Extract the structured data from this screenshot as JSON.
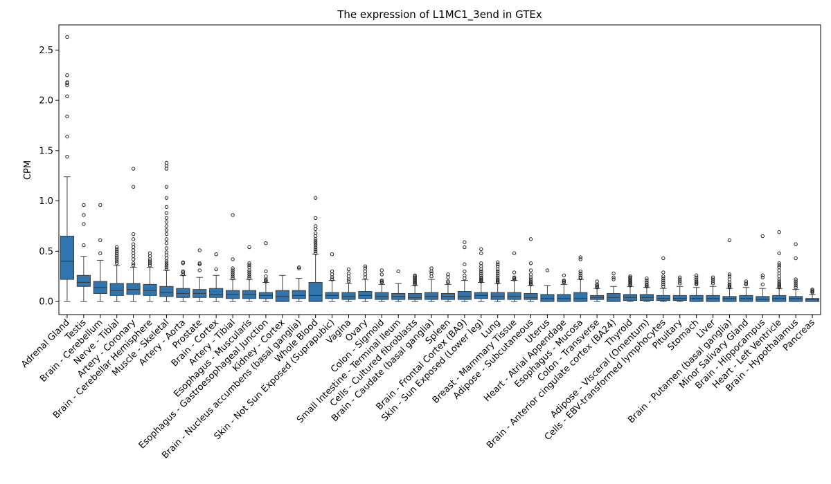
{
  "chart_data": {
    "type": "box",
    "title": "The expression of L1MC1_3end in GTEx",
    "xlabel": "",
    "ylabel": "CPM",
    "ylim": [
      -0.13,
      2.75
    ],
    "yticks": [
      0.0,
      0.5,
      1.0,
      1.5,
      2.0,
      2.5
    ],
    "ytick_labels": [
      "0.0",
      "0.5",
      "1.0",
      "1.5",
      "2.0",
      "2.5"
    ],
    "grid": false,
    "legend": "none",
    "box_color": "#2f75b0",
    "categories": [
      "Adrenal Gland",
      "Testis",
      "Brain - Cerebellum",
      "Nerve - Tibial",
      "Artery - Coronary",
      "Brain - Cerebellar Hemisphere",
      "Muscle - Skeletal",
      "Artery - Aorta",
      "Prostate",
      "Brain - Cortex",
      "Artery - Tibial",
      "Esophagus - Muscularis",
      "Esophagus - Gastroesophageal Junction",
      "Kidney - Cortex",
      "Brain - Nucleus accumbens (basal ganglia)",
      "Whole Blood",
      "Skin - Not Sun Exposed (Suprapubic)",
      "Vagina",
      "Ovary",
      "Colon - Sigmoid",
      "Small Intestine - Terminal Ileum",
      "Cells - Cultured fibroblasts",
      "Brain - Caudate (basal ganglia)",
      "Spleen",
      "Brain - Frontal Cortex (BA9)",
      "Skin - Sun Exposed (Lower leg)",
      "Lung",
      "Breast - Mammary Tissue",
      "Adipose - Subcutaneous",
      "Uterus",
      "Heart - Atrial Appendage",
      "Esophagus - Mucosa",
      "Colon - Transverse",
      "Brain - Anterior cingulate cortex (BA24)",
      "Thyroid",
      "Adipose - Visceral (Omentum)",
      "Cells - EBV-transformed lymphocytes",
      "Pituitary",
      "Stomach",
      "Liver",
      "Brain - Putamen (basal ganglia)",
      "Minor Salivary Gland",
      "Brain - Hippocampus",
      "Heart - Left Ventricle",
      "Brain - Hypothalamus",
      "Pancreas"
    ],
    "boxes": [
      {
        "whislo": 0.0,
        "q1": 0.22,
        "med": 0.4,
        "q3": 0.65,
        "whishi": 1.24,
        "fliers": [
          1.44,
          1.64,
          1.84,
          2.04,
          2.15,
          2.17,
          2.18,
          2.25,
          2.63
        ]
      },
      {
        "whislo": 0.0,
        "q1": 0.15,
        "med": 0.19,
        "q3": 0.26,
        "whishi": 0.45,
        "fliers": [
          0.56,
          0.77,
          0.86,
          0.96
        ]
      },
      {
        "whislo": 0.0,
        "q1": 0.08,
        "med": 0.14,
        "q3": 0.2,
        "whishi": 0.41,
        "fliers": [
          0.48,
          0.61,
          0.96
        ]
      },
      {
        "whislo": 0.0,
        "q1": 0.06,
        "med": 0.11,
        "q3": 0.18,
        "whishi": 0.36,
        "fliers": [
          0.38,
          0.4,
          0.42,
          0.44,
          0.46,
          0.48,
          0.5,
          0.52,
          0.54
        ]
      },
      {
        "whislo": 0.0,
        "q1": 0.07,
        "med": 0.12,
        "q3": 0.18,
        "whishi": 0.34,
        "fliers": [
          0.36,
          0.38,
          0.42,
          0.45,
          0.48,
          0.51,
          0.54,
          0.57,
          0.62,
          0.67,
          1.14,
          1.32
        ]
      },
      {
        "whislo": 0.0,
        "q1": 0.06,
        "med": 0.11,
        "q3": 0.17,
        "whishi": 0.34,
        "fliers": [
          0.36,
          0.38,
          0.4,
          0.42,
          0.45,
          0.48
        ]
      },
      {
        "whislo": 0.0,
        "q1": 0.05,
        "med": 0.09,
        "q3": 0.15,
        "whishi": 0.31,
        "fliers": [
          0.32,
          0.34,
          0.36,
          0.38,
          0.4,
          0.43,
          0.46,
          0.49,
          0.53,
          0.58,
          0.62,
          0.67,
          0.71,
          0.75,
          0.79,
          0.83,
          0.88,
          0.94,
          1.03,
          1.14,
          1.32,
          1.35,
          1.38
        ]
      },
      {
        "whislo": 0.0,
        "q1": 0.04,
        "med": 0.08,
        "q3": 0.13,
        "whishi": 0.26,
        "fliers": [
          0.27,
          0.29,
          0.3,
          0.38,
          0.39
        ]
      },
      {
        "whislo": 0.0,
        "q1": 0.04,
        "med": 0.08,
        "q3": 0.12,
        "whishi": 0.24,
        "fliers": [
          0.31,
          0.37,
          0.38,
          0.51
        ]
      },
      {
        "whislo": 0.0,
        "q1": 0.04,
        "med": 0.07,
        "q3": 0.13,
        "whishi": 0.26,
        "fliers": [
          0.32,
          0.47
        ]
      },
      {
        "whislo": 0.0,
        "q1": 0.03,
        "med": 0.07,
        "q3": 0.11,
        "whishi": 0.22,
        "fliers": [
          0.23,
          0.25,
          0.27,
          0.29,
          0.31,
          0.33,
          0.42,
          0.86
        ]
      },
      {
        "whislo": 0.0,
        "q1": 0.03,
        "med": 0.07,
        "q3": 0.11,
        "whishi": 0.22,
        "fliers": [
          0.23,
          0.25,
          0.27,
          0.29,
          0.31,
          0.34,
          0.36,
          0.38,
          0.54
        ]
      },
      {
        "whislo": 0.0,
        "q1": 0.03,
        "med": 0.06,
        "q3": 0.09,
        "whishi": 0.19,
        "fliers": [
          0.2,
          0.21,
          0.22,
          0.25,
          0.3,
          0.58
        ]
      },
      {
        "whislo": 0.0,
        "q1": 0.0,
        "med": 0.05,
        "q3": 0.11,
        "whishi": 0.26,
        "fliers": []
      },
      {
        "whislo": 0.0,
        "q1": 0.03,
        "med": 0.06,
        "q3": 0.11,
        "whishi": 0.23,
        "fliers": [
          0.33,
          0.34
        ]
      },
      {
        "whislo": 0.0,
        "q1": 0.0,
        "med": 0.06,
        "q3": 0.19,
        "whishi": 0.47,
        "fliers": [
          0.48,
          0.5,
          0.52,
          0.54,
          0.56,
          0.58,
          0.6,
          0.62,
          0.65,
          0.68,
          0.72,
          0.75,
          0.83,
          1.03
        ]
      },
      {
        "whislo": 0.0,
        "q1": 0.03,
        "med": 0.06,
        "q3": 0.09,
        "whishi": 0.21,
        "fliers": [
          0.22,
          0.24,
          0.27,
          0.3,
          0.47
        ]
      },
      {
        "whislo": 0.0,
        "q1": 0.02,
        "med": 0.05,
        "q3": 0.09,
        "whishi": 0.18,
        "fliers": [
          0.2,
          0.22,
          0.25,
          0.28,
          0.32
        ]
      },
      {
        "whislo": 0.0,
        "q1": 0.03,
        "med": 0.06,
        "q3": 0.1,
        "whishi": 0.22,
        "fliers": [
          0.24,
          0.27,
          0.3,
          0.33,
          0.35
        ]
      },
      {
        "whislo": 0.0,
        "q1": 0.02,
        "med": 0.05,
        "q3": 0.09,
        "whishi": 0.17,
        "fliers": [
          0.19,
          0.2,
          0.21,
          0.27,
          0.31
        ]
      },
      {
        "whislo": 0.0,
        "q1": 0.02,
        "med": 0.05,
        "q3": 0.08,
        "whishi": 0.18,
        "fliers": [
          0.3
        ]
      },
      {
        "whislo": 0.0,
        "q1": 0.02,
        "med": 0.04,
        "q3": 0.08,
        "whishi": 0.16,
        "fliers": [
          0.17,
          0.18,
          0.19,
          0.2,
          0.21,
          0.22,
          0.23,
          0.24,
          0.25,
          0.26
        ]
      },
      {
        "whislo": 0.0,
        "q1": 0.02,
        "med": 0.05,
        "q3": 0.09,
        "whishi": 0.22,
        "fliers": [
          0.25,
          0.28,
          0.3,
          0.33
        ]
      },
      {
        "whislo": 0.0,
        "q1": 0.02,
        "med": 0.05,
        "q3": 0.08,
        "whishi": 0.17,
        "fliers": [
          0.19,
          0.2,
          0.24,
          0.27
        ]
      },
      {
        "whislo": 0.0,
        "q1": 0.02,
        "med": 0.05,
        "q3": 0.1,
        "whishi": 0.21,
        "fliers": [
          0.23,
          0.26,
          0.3,
          0.37,
          0.54,
          0.59
        ]
      },
      {
        "whislo": 0.0,
        "q1": 0.03,
        "med": 0.06,
        "q3": 0.09,
        "whishi": 0.19,
        "fliers": [
          0.2,
          0.21,
          0.22,
          0.23,
          0.24,
          0.26,
          0.28,
          0.3,
          0.32,
          0.35,
          0.38,
          0.48,
          0.52
        ]
      },
      {
        "whislo": 0.0,
        "q1": 0.02,
        "med": 0.05,
        "q3": 0.09,
        "whishi": 0.18,
        "fliers": [
          0.19,
          0.2,
          0.21,
          0.22,
          0.24,
          0.26,
          0.28,
          0.3,
          0.32,
          0.35,
          0.37,
          0.39
        ]
      },
      {
        "whislo": 0.0,
        "q1": 0.02,
        "med": 0.05,
        "q3": 0.09,
        "whishi": 0.21,
        "fliers": [
          0.22,
          0.23,
          0.24,
          0.29,
          0.48
        ]
      },
      {
        "whislo": 0.0,
        "q1": 0.02,
        "med": 0.04,
        "q3": 0.08,
        "whishi": 0.16,
        "fliers": [
          0.17,
          0.18,
          0.19,
          0.2,
          0.22,
          0.24,
          0.27,
          0.31,
          0.38,
          0.62
        ]
      },
      {
        "whislo": 0.0,
        "q1": 0.0,
        "med": 0.03,
        "q3": 0.07,
        "whishi": 0.16,
        "fliers": [
          0.31
        ]
      },
      {
        "whislo": 0.0,
        "q1": 0.0,
        "med": 0.03,
        "q3": 0.07,
        "whishi": 0.17,
        "fliers": [
          0.19,
          0.2,
          0.21,
          0.26
        ]
      },
      {
        "whislo": 0.0,
        "q1": 0.0,
        "med": 0.03,
        "q3": 0.09,
        "whishi": 0.22,
        "fliers": [
          0.23,
          0.24,
          0.26,
          0.28,
          0.3,
          0.42,
          0.44
        ]
      },
      {
        "whislo": 0.0,
        "q1": 0.02,
        "med": 0.04,
        "q3": 0.06,
        "whishi": 0.13,
        "fliers": [
          0.14,
          0.15,
          0.16,
          0.17,
          0.2
        ]
      },
      {
        "whislo": 0.0,
        "q1": 0.0,
        "med": 0.04,
        "q3": 0.08,
        "whishi": 0.15,
        "fliers": [
          0.22,
          0.24,
          0.28
        ]
      },
      {
        "whislo": 0.0,
        "q1": 0.01,
        "med": 0.04,
        "q3": 0.07,
        "whishi": 0.15,
        "fliers": [
          0.16,
          0.17,
          0.18,
          0.19,
          0.2,
          0.21,
          0.22,
          0.23,
          0.24,
          0.25
        ]
      },
      {
        "whislo": 0.0,
        "q1": 0.01,
        "med": 0.04,
        "q3": 0.07,
        "whishi": 0.14,
        "fliers": [
          0.15,
          0.16,
          0.17,
          0.19,
          0.21,
          0.23
        ]
      },
      {
        "whislo": 0.0,
        "q1": 0.01,
        "med": 0.03,
        "q3": 0.06,
        "whishi": 0.13,
        "fliers": [
          0.15,
          0.17,
          0.19,
          0.21,
          0.23,
          0.25,
          0.29,
          0.43
        ]
      },
      {
        "whislo": 0.0,
        "q1": 0.01,
        "med": 0.03,
        "q3": 0.06,
        "whishi": 0.15,
        "fliers": [
          0.18,
          0.2,
          0.22,
          0.24
        ]
      },
      {
        "whislo": 0.0,
        "q1": 0.0,
        "med": 0.03,
        "q3": 0.06,
        "whishi": 0.14,
        "fliers": [
          0.17,
          0.18,
          0.19,
          0.2,
          0.22,
          0.24,
          0.26
        ]
      },
      {
        "whislo": 0.0,
        "q1": 0.0,
        "med": 0.03,
        "q3": 0.06,
        "whishi": 0.15,
        "fliers": [
          0.18,
          0.2,
          0.22,
          0.24
        ]
      },
      {
        "whislo": 0.0,
        "q1": 0.0,
        "med": 0.03,
        "q3": 0.05,
        "whishi": 0.13,
        "fliers": [
          0.14,
          0.15,
          0.16,
          0.17,
          0.19,
          0.22,
          0.25,
          0.27,
          0.61
        ]
      },
      {
        "whislo": 0.0,
        "q1": 0.0,
        "med": 0.03,
        "q3": 0.06,
        "whishi": 0.14,
        "fliers": [
          0.17,
          0.18,
          0.2
        ]
      },
      {
        "whislo": 0.0,
        "q1": 0.0,
        "med": 0.02,
        "q3": 0.05,
        "whishi": 0.13,
        "fliers": [
          0.17,
          0.24,
          0.26,
          0.65
        ]
      },
      {
        "whislo": 0.0,
        "q1": 0.0,
        "med": 0.03,
        "q3": 0.06,
        "whishi": 0.13,
        "fliers": [
          0.14,
          0.15,
          0.16,
          0.17,
          0.18,
          0.2,
          0.22,
          0.25,
          0.28,
          0.31,
          0.34,
          0.36,
          0.38,
          0.48,
          0.69
        ]
      },
      {
        "whislo": 0.0,
        "q1": 0.0,
        "med": 0.03,
        "q3": 0.05,
        "whishi": 0.12,
        "fliers": [
          0.14,
          0.16,
          0.18,
          0.2,
          0.22,
          0.43,
          0.57
        ]
      },
      {
        "whislo": 0.0,
        "q1": 0.0,
        "med": 0.02,
        "q3": 0.03,
        "whishi": 0.07,
        "fliers": [
          0.09,
          0.1,
          0.11,
          0.12
        ]
      }
    ]
  }
}
